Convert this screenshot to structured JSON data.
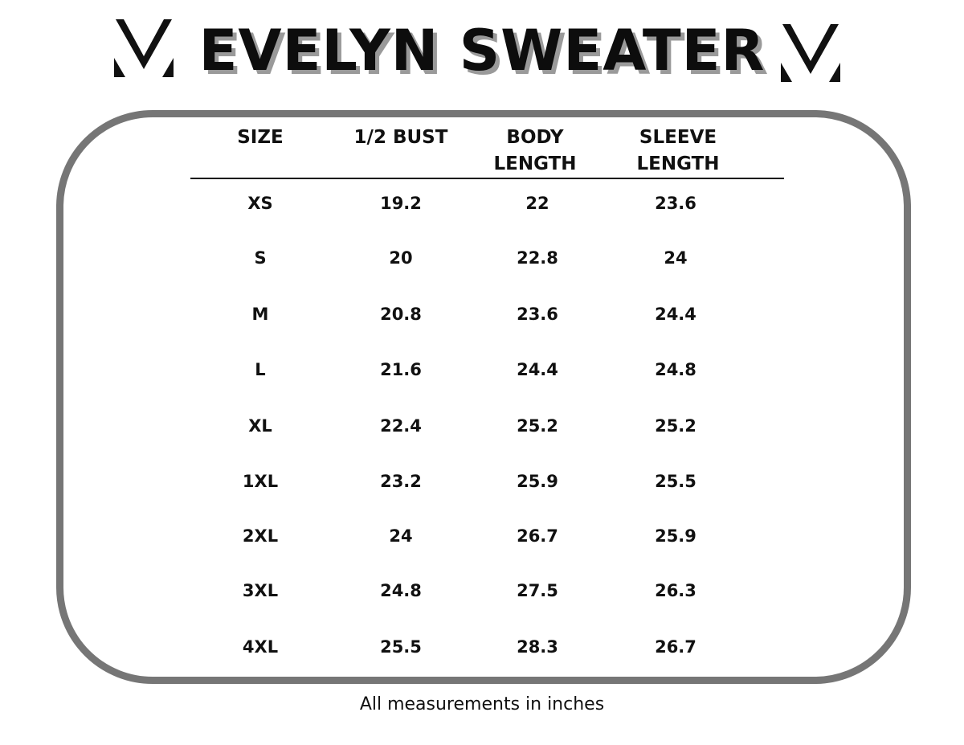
{
  "header": {
    "title": "EVELYN SWEATER",
    "logo_icon": "v-mark-logo-icon"
  },
  "table": {
    "columns": [
      {
        "label_line1": "",
        "label_line2": "SIZE"
      },
      {
        "label_line1": "",
        "label_line2": "1/2 BUST"
      },
      {
        "label_line1": "BODY",
        "label_line2": "LENGTH"
      },
      {
        "label_line1": "SLEEVE",
        "label_line2": "LENGTH"
      }
    ],
    "rows": [
      {
        "size": "XS",
        "bust": "19.2",
        "body": "22",
        "sleeve": "23.6"
      },
      {
        "size": "S",
        "bust": "20",
        "body": "22.8",
        "sleeve": "24"
      },
      {
        "size": "M",
        "bust": "20.8",
        "body": "23.6",
        "sleeve": "24.4"
      },
      {
        "size": "L",
        "bust": "21.6",
        "body": "24.4",
        "sleeve": "24.8"
      },
      {
        "size": "XL",
        "bust": "22.4",
        "body": "25.2",
        "sleeve": "25.2"
      },
      {
        "size": "1XL",
        "bust": "23.2",
        "body": "25.9",
        "sleeve": "25.5"
      },
      {
        "size": "2XL",
        "bust": "24",
        "body": "26.7",
        "sleeve": "25.9"
      },
      {
        "size": "3XL",
        "bust": "24.8",
        "body": "27.5",
        "sleeve": "26.3"
      },
      {
        "size": "4XL",
        "bust": "25.5",
        "body": "28.3",
        "sleeve": "26.7"
      }
    ]
  },
  "footnote": "All measurements in inches",
  "colors": {
    "frame": "#767676",
    "title_shadow": "#9a9a9a",
    "text": "#111111"
  }
}
